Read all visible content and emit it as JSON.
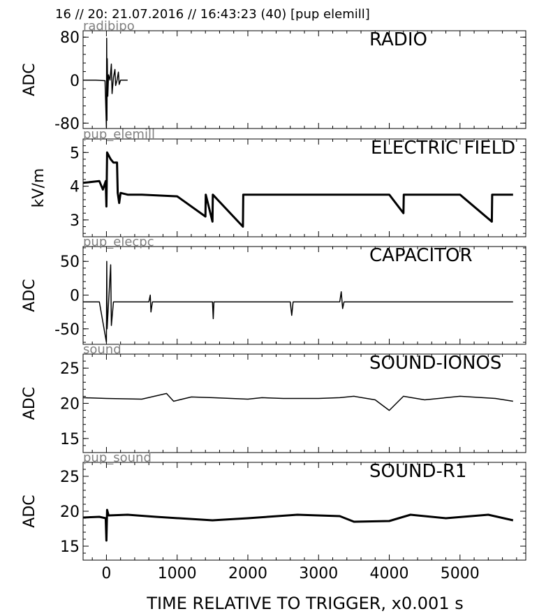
{
  "header": "16 // 20:   21.07.2016 // 16:43:23 (40)  [pup elemill]",
  "chart_data": [
    {
      "type": "line",
      "source": "radibipo",
      "title": "RADIO",
      "ylabel": "ADC",
      "xlim": [
        -330,
        5930
      ],
      "ylim": [
        -90,
        92
      ],
      "yticks": [
        80,
        0,
        -80
      ],
      "series": [
        {
          "points": [
            [
              -330,
              0
            ],
            [
              -150,
              0
            ],
            [
              -20,
              -1
            ],
            [
              0,
              -88
            ],
            [
              4,
              78
            ],
            [
              8,
              -75
            ],
            [
              12,
              40
            ],
            [
              20,
              -30
            ],
            [
              30,
              10
            ],
            [
              50,
              0
            ],
            [
              70,
              30
            ],
            [
              80,
              -25
            ],
            [
              100,
              5
            ],
            [
              120,
              20
            ],
            [
              130,
              -10
            ],
            [
              150,
              0
            ],
            [
              170,
              15
            ],
            [
              180,
              -8
            ],
            [
              200,
              0
            ],
            [
              300,
              0
            ]
          ]
        }
      ]
    },
    {
      "type": "line",
      "source": "pup_elemill",
      "title": "ELECTRIC FIELD",
      "ylabel": "kV/m",
      "xlim": [
        -330,
        5930
      ],
      "ylim": [
        2.5,
        5.4
      ],
      "yticks": [
        5,
        4,
        3
      ],
      "series": [
        {
          "points": [
            [
              -330,
              4.1
            ],
            [
              -100,
              4.15
            ],
            [
              -50,
              3.9
            ],
            [
              -10,
              4.15
            ],
            [
              0,
              3.4
            ],
            [
              10,
              5.0
            ],
            [
              60,
              4.8
            ],
            [
              100,
              4.7
            ],
            [
              150,
              4.7
            ],
            [
              160,
              3.8
            ],
            [
              180,
              3.5
            ],
            [
              200,
              3.8
            ],
            [
              300,
              3.75
            ],
            [
              500,
              3.75
            ],
            [
              1000,
              3.7
            ],
            [
              1400,
              3.1
            ],
            [
              1405,
              3.75
            ],
            [
              1500,
              2.95
            ],
            [
              1505,
              3.75
            ],
            [
              1930,
              2.8
            ],
            [
              1935,
              3.75
            ],
            [
              2500,
              3.75
            ],
            [
              3000,
              3.75
            ],
            [
              4000,
              3.75
            ],
            [
              4200,
              3.2
            ],
            [
              4205,
              3.75
            ],
            [
              5000,
              3.75
            ],
            [
              5450,
              2.95
            ],
            [
              5455,
              3.75
            ],
            [
              5750,
              3.75
            ]
          ]
        }
      ]
    },
    {
      "type": "line",
      "source": "pup_elecpc",
      "title": "CAPACITOR",
      "ylabel": "ADC",
      "xlim": [
        -330,
        5930
      ],
      "ylim": [
        -73,
        72
      ],
      "yticks": [
        50,
        0,
        -50
      ],
      "series": [
        {
          "points": [
            [
              -330,
              -10
            ],
            [
              -100,
              -10
            ],
            [
              0,
              -70
            ],
            [
              5,
              50
            ],
            [
              10,
              -50
            ],
            [
              60,
              45
            ],
            [
              70,
              -45
            ],
            [
              100,
              -10
            ],
            [
              600,
              -10
            ],
            [
              620,
              0
            ],
            [
              630,
              -25
            ],
            [
              650,
              -10
            ],
            [
              1500,
              -10
            ],
            [
              1510,
              -35
            ],
            [
              1520,
              -10
            ],
            [
              2600,
              -10
            ],
            [
              2620,
              -30
            ],
            [
              2640,
              -10
            ],
            [
              3300,
              -10
            ],
            [
              3320,
              5
            ],
            [
              3340,
              -20
            ],
            [
              3360,
              -10
            ],
            [
              5750,
              -10
            ]
          ]
        }
      ]
    },
    {
      "type": "line",
      "source": "sound",
      "title": "SOUND-IONOS",
      "ylabel": "ADC",
      "xlim": [
        -330,
        5930
      ],
      "ylim": [
        13,
        27
      ],
      "yticks": [
        25,
        20,
        15
      ],
      "series": [
        {
          "points": [
            [
              -330,
              20.8
            ],
            [
              0,
              20.7
            ],
            [
              500,
              20.6
            ],
            [
              850,
              21.4
            ],
            [
              950,
              20.3
            ],
            [
              1200,
              20.9
            ],
            [
              1500,
              20.8
            ],
            [
              2000,
              20.6
            ],
            [
              2200,
              20.8
            ],
            [
              2500,
              20.7
            ],
            [
              3000,
              20.7
            ],
            [
              3300,
              20.8
            ],
            [
              3500,
              21.0
            ],
            [
              3800,
              20.5
            ],
            [
              4000,
              19.0
            ],
            [
              4200,
              21.0
            ],
            [
              4500,
              20.5
            ],
            [
              5000,
              21.0
            ],
            [
              5500,
              20.7
            ],
            [
              5750,
              20.3
            ]
          ]
        }
      ]
    },
    {
      "type": "line",
      "source": "pup_sound",
      "title": "SOUND-R1",
      "ylabel": "ADC",
      "xlim": [
        -330,
        5930
      ],
      "ylim": [
        13,
        27
      ],
      "yticks": [
        25,
        20,
        15
      ],
      "xlabel": "TIME RELATIVE TO TRIGGER,   x0.001 s",
      "xticks": [
        0,
        1000,
        2000,
        3000,
        4000,
        5000
      ],
      "series": [
        {
          "points": [
            [
              -330,
              19.1
            ],
            [
              -100,
              19.2
            ],
            [
              -10,
              19.0
            ],
            [
              0,
              15.8
            ],
            [
              10,
              20.2
            ],
            [
              30,
              19.4
            ],
            [
              300,
              19.5
            ],
            [
              700,
              19.2
            ],
            [
              1500,
              18.7
            ],
            [
              2000,
              19.0
            ],
            [
              2700,
              19.5
            ],
            [
              3300,
              19.3
            ],
            [
              3500,
              18.5
            ],
            [
              4000,
              18.6
            ],
            [
              4300,
              19.5
            ],
            [
              4800,
              19.0
            ],
            [
              5400,
              19.5
            ],
            [
              5750,
              18.7
            ]
          ]
        }
      ]
    }
  ]
}
